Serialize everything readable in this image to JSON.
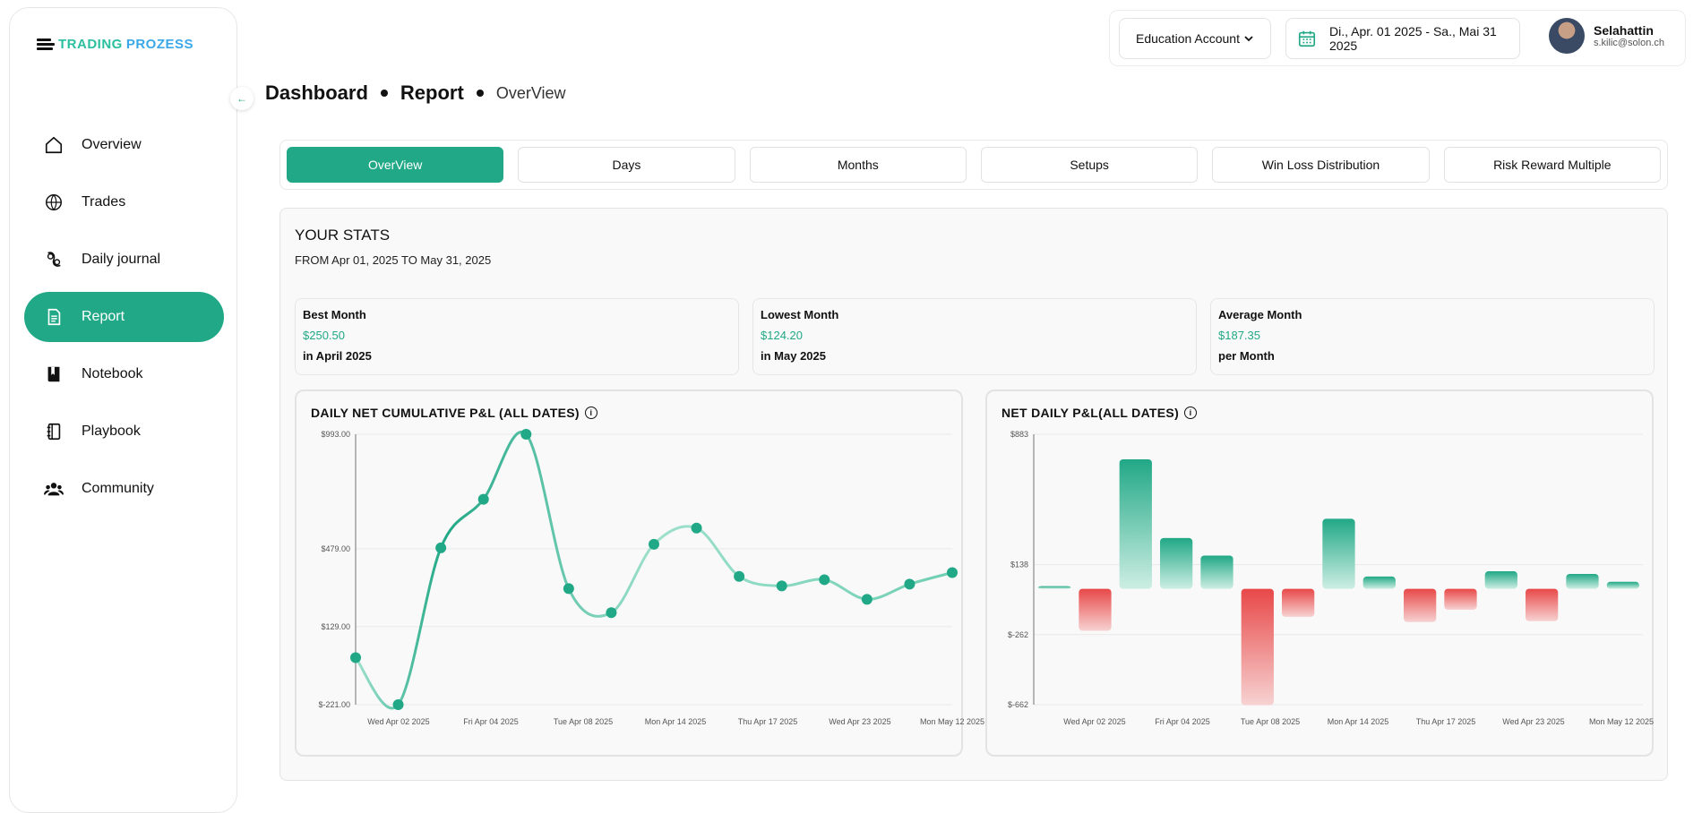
{
  "logo": {
    "text1": "TRADING",
    "text2": "PROZESS"
  },
  "sidebar": {
    "items": [
      {
        "label": "Overview",
        "icon": "home-icon"
      },
      {
        "label": "Trades",
        "icon": "globe-icon"
      },
      {
        "label": "Daily journal",
        "icon": "journal-icon"
      },
      {
        "label": "Report",
        "icon": "report-icon"
      },
      {
        "label": "Notebook",
        "icon": "notebook-icon"
      },
      {
        "label": "Playbook",
        "icon": "playbook-icon"
      },
      {
        "label": "Community",
        "icon": "community-icon"
      }
    ]
  },
  "topbar": {
    "account": "Education Account",
    "daterange": "Di., Apr. 01 2025 - Sa., Mai 31 2025",
    "user_name": "Selahattin",
    "user_email": "s.kilic@solon.ch"
  },
  "breadcrumb": {
    "a": "Dashboard",
    "b": "Report",
    "c": "OverView"
  },
  "tabs": [
    "OverView",
    "Days",
    "Months",
    "Setups",
    "Win Loss Distribution",
    "Risk Reward Multiple"
  ],
  "stats": {
    "title": "YOUR STATS",
    "subtitle": "FROM Apr 01, 2025 TO May 31, 2025"
  },
  "cards": [
    {
      "head": "Best Month",
      "value": "$250.50",
      "sub": "in April 2025"
    },
    {
      "head": "Lowest Month",
      "value": "$124.20",
      "sub": "in May 2025"
    },
    {
      "head": "Average Month",
      "value": "$187.35",
      "sub": "per Month"
    }
  ],
  "colors": {
    "accent": "#21a886",
    "negative": "#e84848"
  },
  "chart_data": [
    {
      "type": "line",
      "title": "DAILY NET CUMULATIVE P&L (ALL DATES)",
      "ytick_labels": [
        "$993.00",
        "$479.00",
        "$129.00",
        "$-221.00"
      ],
      "ytick_values": [
        993,
        479,
        129,
        -221
      ],
      "ylim": [
        -221,
        993
      ],
      "xtick_labels": [
        "Wed Apr 02 2025",
        "Fri Apr 04 2025",
        "Tue Apr 08 2025",
        "Mon Apr 14 2025",
        "Thu Apr 17 2025",
        "Wed Apr 23 2025",
        "Mon May 12 2025"
      ],
      "values": [
        -10,
        -221,
        483,
        701,
        993,
        300,
        192,
        499,
        572,
        355,
        312,
        340,
        252,
        320,
        372
      ]
    },
    {
      "type": "bar",
      "title": "NET DAILY P&L(ALL DATES)",
      "ytick_labels": [
        "$883",
        "$138",
        "$-262",
        "$-662"
      ],
      "ytick_values": [
        883,
        138,
        -262,
        -662
      ],
      "ylim": [
        -662,
        883
      ],
      "xtick_labels": [
        "Wed Apr 02 2025",
        "Fri Apr 04 2025",
        "Tue Apr 08 2025",
        "Mon Apr 14 2025",
        "Thu Apr 17 2025",
        "Wed Apr 23 2025",
        "Mon May 12 2025"
      ],
      "values": [
        15,
        -240,
        740,
        290,
        190,
        -665,
        -160,
        400,
        70,
        -190,
        -120,
        100,
        -185,
        85,
        40
      ]
    }
  ]
}
